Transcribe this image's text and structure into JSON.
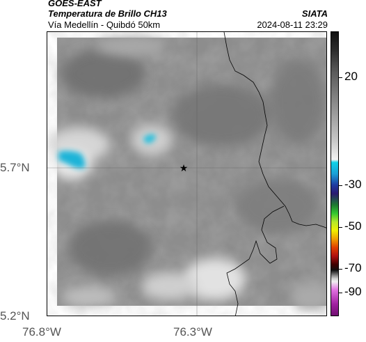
{
  "header": {
    "satellite": "GOES-EAST",
    "product": "Temperatura de Brillo CH13",
    "region": "Vía Medellín - Quibdó 50km",
    "agency": "SIATA",
    "datetime": "2024-08-11 23:29"
  },
  "map": {
    "lon_ticks": [
      "76.8°W",
      "76.3°W"
    ],
    "lat_ticks": [
      "5.7°N",
      "5.2°N"
    ],
    "marker_icon": "star-icon"
  },
  "colorbar": {
    "labels": [
      "20",
      "-30",
      "-50",
      "-70",
      "-90"
    ]
  },
  "colors": {
    "cloud_cold": "#1fb4d8",
    "background_gray": "#8c8c8c"
  }
}
